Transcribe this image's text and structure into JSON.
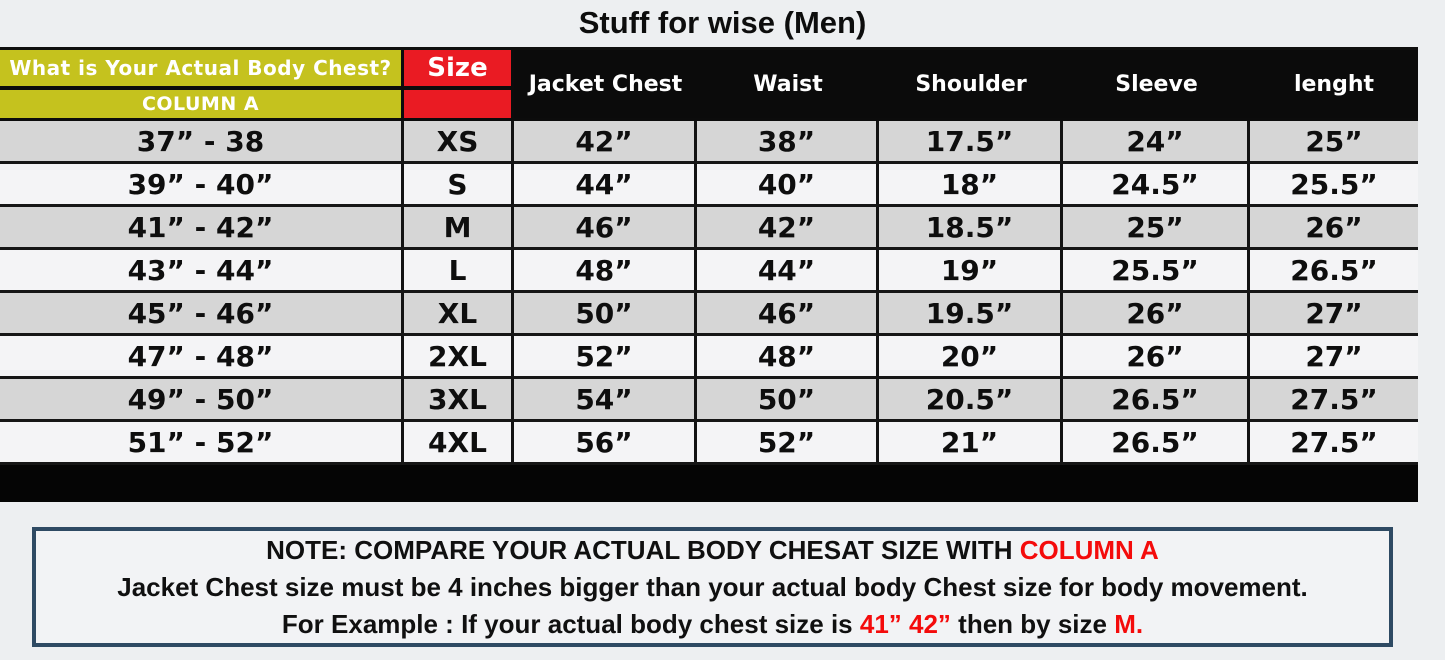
{
  "page": {
    "background": "#edeff1"
  },
  "colors": {
    "header_yellow": "#c5c21e",
    "header_red": "#ea1b23",
    "header_black": "#0b0b0b",
    "row_gray": "#d6d6d6",
    "row_light": "#f4f4f6",
    "note_border_blue": "#2e4a63",
    "note_accent_red": "#f40b0b"
  },
  "chart_data": {
    "type": "table",
    "title": "Stuff for wise (Men)",
    "header": {
      "column_a_question": "What is Your Actual Body Chest?",
      "column_a_label": "COLUMN A",
      "size": "Size",
      "measures": [
        "Jacket Chest",
        "Waist",
        "Shoulder",
        "Sleeve",
        "lenght"
      ]
    },
    "rows": [
      [
        "37” - 38",
        "XS",
        "42”",
        "38”",
        "17.5”",
        "24”",
        "25”"
      ],
      [
        "39” - 40”",
        "S",
        "44”",
        "40”",
        "18”",
        "24.5”",
        "25.5”"
      ],
      [
        "41” - 42”",
        "M",
        "46”",
        "42”",
        "18.5”",
        "25”",
        "26”"
      ],
      [
        "43” - 44”",
        "L",
        "48”",
        "44”",
        "19”",
        "25.5”",
        "26.5”"
      ],
      [
        "45” - 46”",
        "XL",
        "50”",
        "46”",
        "19.5”",
        "26”",
        "27”"
      ],
      [
        "47” - 48”",
        "2XL",
        "52”",
        "48”",
        "20”",
        "26”",
        "27”"
      ],
      [
        "49” - 50”",
        "3XL",
        "54”",
        "50”",
        "20.5”",
        "26.5”",
        "27.5”"
      ],
      [
        "51” - 52”",
        "4XL",
        "56”",
        "52”",
        "21”",
        "26.5”",
        "27.5”"
      ]
    ]
  },
  "note": {
    "line1_text": "NOTE: COMPARE YOUR ACTUAL BODY CHESAT SIZE WITH ",
    "line1_highlight": "COLUMN A",
    "line2_text": "Jacket Chest size must be 4 inches bigger than your actual body Chest size for body movement.",
    "line3_text": "For Example : If your actual body chest size is ",
    "line3_highlight1": "41” 42”",
    "line3_mid": "  then by size ",
    "line3_highlight2": "M."
  }
}
